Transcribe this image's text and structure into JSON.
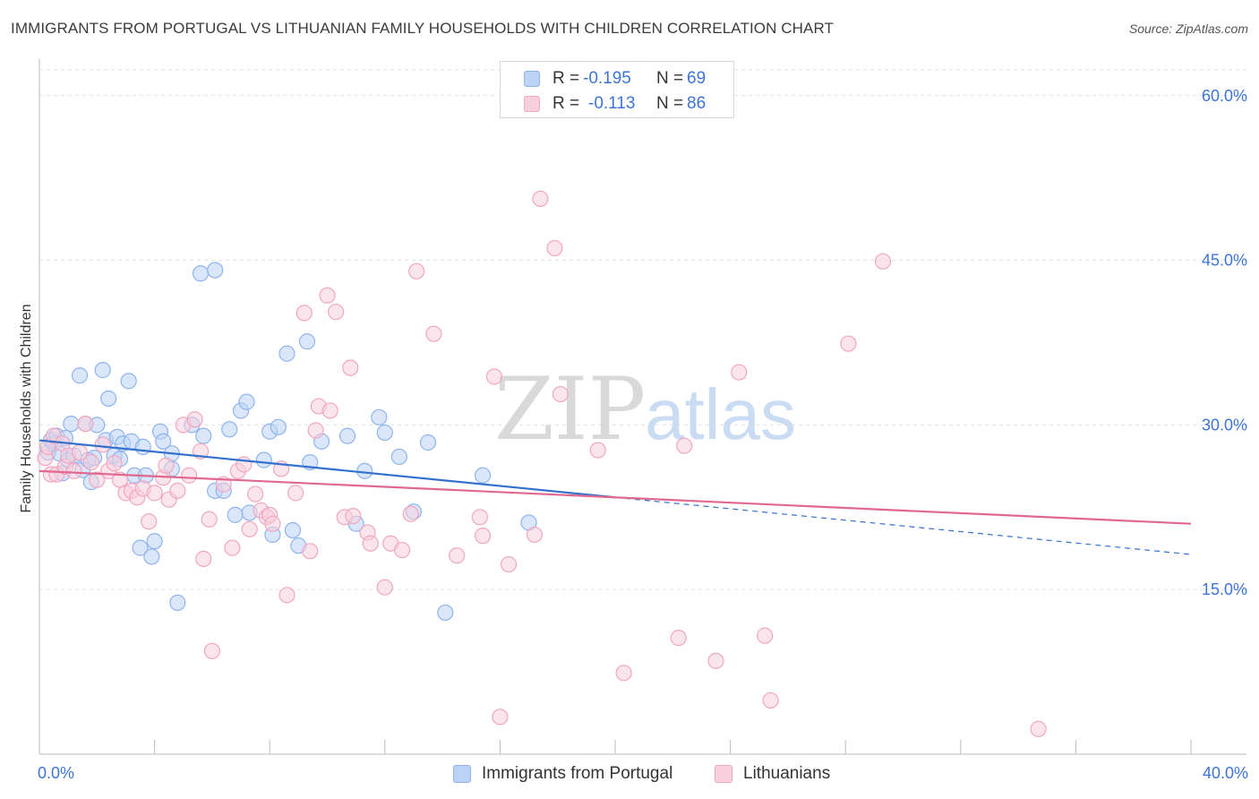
{
  "header": {
    "title": "IMMIGRANTS FROM PORTUGAL VS LITHUANIAN FAMILY HOUSEHOLDS WITH CHILDREN CORRELATION CHART",
    "source": "Source: ZipAtlas.com"
  },
  "watermark": {
    "zip": "ZIP",
    "atlas": "atlas"
  },
  "legend": {
    "rows": [
      {
        "r_label": "R =",
        "r_value": "-0.195",
        "n_label": "N =",
        "n_value": "69"
      },
      {
        "r_label": "R =",
        "r_value": "-0.113",
        "n_label": "N =",
        "n_value": "86"
      }
    ]
  },
  "chart_data": {
    "type": "scatter",
    "title": "IMMIGRANTS FROM PORTUGAL VS LITHUANIAN FAMILY HOUSEHOLDS WITH CHILDREN CORRELATION CHART",
    "xlabel": "",
    "ylabel": "Family Households with Children",
    "xlim": [
      0,
      40
    ],
    "ylim": [
      0,
      63
    ],
    "x_tick_labels": [
      "0.0%",
      "40.0%"
    ],
    "y_ticks": [
      15,
      30,
      45,
      60
    ],
    "y_tick_labels": [
      "15.0%",
      "30.0%",
      "45.0%",
      "60.0%"
    ],
    "grid": true,
    "legend_position": "top-center",
    "series": [
      {
        "name": "Immigrants from Portugal",
        "color": "#8fb4ec",
        "fill": "#bcd3f5",
        "line_color": "#3371cc",
        "trend": {
          "x": [
            0,
            20
          ],
          "y": [
            28.6,
            23.4
          ],
          "dashed_to": [
            40,
            18.2
          ]
        },
        "points": [
          [
            0.3,
            27.5
          ],
          [
            0.4,
            28.6
          ],
          [
            0.5,
            28.3
          ],
          [
            0.6,
            29.0
          ],
          [
            0.7,
            27.4
          ],
          [
            0.8,
            25.6
          ],
          [
            0.9,
            28.8
          ],
          [
            1.0,
            26.8
          ],
          [
            1.1,
            30.1
          ],
          [
            1.2,
            27.2
          ],
          [
            1.4,
            34.5
          ],
          [
            1.5,
            25.9
          ],
          [
            1.6,
            30.1
          ],
          [
            1.7,
            26.8
          ],
          [
            1.8,
            24.8
          ],
          [
            1.9,
            27.0
          ],
          [
            2.0,
            30.0
          ],
          [
            2.2,
            35.0
          ],
          [
            2.3,
            28.6
          ],
          [
            2.4,
            32.4
          ],
          [
            2.6,
            27.2
          ],
          [
            2.7,
            28.9
          ],
          [
            2.8,
            26.9
          ],
          [
            2.9,
            28.3
          ],
          [
            3.1,
            34.0
          ],
          [
            3.2,
            28.5
          ],
          [
            3.3,
            25.4
          ],
          [
            3.5,
            18.8
          ],
          [
            3.6,
            28.0
          ],
          [
            3.7,
            25.4
          ],
          [
            3.9,
            18.0
          ],
          [
            4.0,
            19.4
          ],
          [
            4.2,
            29.4
          ],
          [
            4.3,
            28.5
          ],
          [
            4.6,
            27.4
          ],
          [
            4.6,
            26.0
          ],
          [
            4.8,
            13.8
          ],
          [
            5.3,
            30.0
          ],
          [
            5.6,
            43.8
          ],
          [
            5.7,
            29.0
          ],
          [
            6.1,
            44.1
          ],
          [
            6.1,
            24.0
          ],
          [
            6.4,
            24.0
          ],
          [
            6.6,
            29.6
          ],
          [
            6.8,
            21.8
          ],
          [
            7.0,
            31.3
          ],
          [
            7.2,
            32.1
          ],
          [
            7.3,
            22.0
          ],
          [
            7.8,
            26.8
          ],
          [
            8.0,
            29.4
          ],
          [
            8.1,
            20.0
          ],
          [
            8.3,
            29.8
          ],
          [
            8.6,
            36.5
          ],
          [
            8.8,
            20.4
          ],
          [
            9.0,
            19.0
          ],
          [
            9.3,
            37.6
          ],
          [
            9.4,
            26.6
          ],
          [
            9.8,
            28.5
          ],
          [
            10.7,
            29.0
          ],
          [
            11.0,
            21.0
          ],
          [
            11.3,
            25.8
          ],
          [
            11.8,
            30.7
          ],
          [
            12.0,
            29.3
          ],
          [
            12.5,
            27.1
          ],
          [
            13.0,
            22.1
          ],
          [
            13.5,
            28.4
          ],
          [
            14.1,
            12.9
          ],
          [
            15.4,
            25.4
          ],
          [
            17.0,
            21.1
          ]
        ]
      },
      {
        "name": "Lithuanians",
        "color": "#f0a7bf",
        "fill": "#f8cfdc",
        "line_color": "#e0688f",
        "trend": {
          "x": [
            0,
            40
          ],
          "y": [
            25.8,
            21.0
          ]
        },
        "points": [
          [
            0.2,
            27.0
          ],
          [
            0.3,
            28.0
          ],
          [
            0.4,
            25.5
          ],
          [
            0.5,
            29.0
          ],
          [
            0.6,
            25.5
          ],
          [
            0.8,
            28.3
          ],
          [
            0.9,
            26.2
          ],
          [
            1.0,
            27.2
          ],
          [
            1.2,
            25.8
          ],
          [
            1.4,
            27.5
          ],
          [
            1.6,
            30.1
          ],
          [
            1.8,
            26.6
          ],
          [
            2.0,
            25.0
          ],
          [
            2.2,
            28.2
          ],
          [
            2.4,
            25.8
          ],
          [
            2.6,
            26.5
          ],
          [
            2.8,
            25.0
          ],
          [
            3.0,
            23.8
          ],
          [
            3.2,
            24.0
          ],
          [
            3.4,
            23.4
          ],
          [
            3.6,
            24.2
          ],
          [
            3.8,
            21.2
          ],
          [
            4.0,
            23.8
          ],
          [
            4.3,
            25.2
          ],
          [
            4.4,
            26.3
          ],
          [
            4.5,
            23.2
          ],
          [
            4.8,
            24.0
          ],
          [
            5.0,
            30.0
          ],
          [
            5.2,
            25.4
          ],
          [
            5.4,
            30.5
          ],
          [
            5.6,
            27.6
          ],
          [
            5.7,
            17.8
          ],
          [
            5.9,
            21.4
          ],
          [
            6.0,
            9.4
          ],
          [
            6.4,
            24.6
          ],
          [
            6.7,
            18.8
          ],
          [
            6.9,
            25.8
          ],
          [
            7.1,
            26.4
          ],
          [
            7.3,
            20.5
          ],
          [
            7.5,
            23.7
          ],
          [
            7.7,
            22.2
          ],
          [
            7.9,
            21.6
          ],
          [
            8.0,
            21.8
          ],
          [
            8.1,
            21.0
          ],
          [
            8.4,
            26.0
          ],
          [
            8.6,
            14.5
          ],
          [
            8.9,
            23.8
          ],
          [
            9.2,
            40.2
          ],
          [
            9.4,
            18.5
          ],
          [
            9.6,
            29.5
          ],
          [
            9.7,
            31.7
          ],
          [
            10.0,
            41.8
          ],
          [
            10.1,
            31.3
          ],
          [
            10.3,
            40.3
          ],
          [
            10.6,
            21.6
          ],
          [
            10.8,
            35.2
          ],
          [
            10.9,
            21.7
          ],
          [
            11.4,
            20.2
          ],
          [
            11.5,
            19.2
          ],
          [
            12.0,
            15.2
          ],
          [
            12.2,
            19.2
          ],
          [
            12.6,
            18.6
          ],
          [
            12.9,
            21.9
          ],
          [
            13.1,
            44.0
          ],
          [
            13.7,
            38.3
          ],
          [
            14.5,
            18.1
          ],
          [
            15.3,
            21.6
          ],
          [
            15.4,
            19.9
          ],
          [
            15.8,
            34.4
          ],
          [
            16.3,
            17.3
          ],
          [
            17.2,
            20.0
          ],
          [
            17.4,
            50.6
          ],
          [
            17.9,
            46.1
          ],
          [
            18.1,
            32.8
          ],
          [
            19.4,
            27.7
          ],
          [
            20.3,
            7.4
          ],
          [
            22.2,
            10.6
          ],
          [
            22.4,
            28.1
          ],
          [
            23.5,
            8.5
          ],
          [
            24.3,
            34.8
          ],
          [
            25.2,
            10.8
          ],
          [
            25.4,
            4.9
          ],
          [
            28.1,
            37.4
          ],
          [
            29.3,
            44.9
          ],
          [
            34.7,
            2.3
          ],
          [
            16.0,
            3.4
          ]
        ]
      }
    ]
  }
}
